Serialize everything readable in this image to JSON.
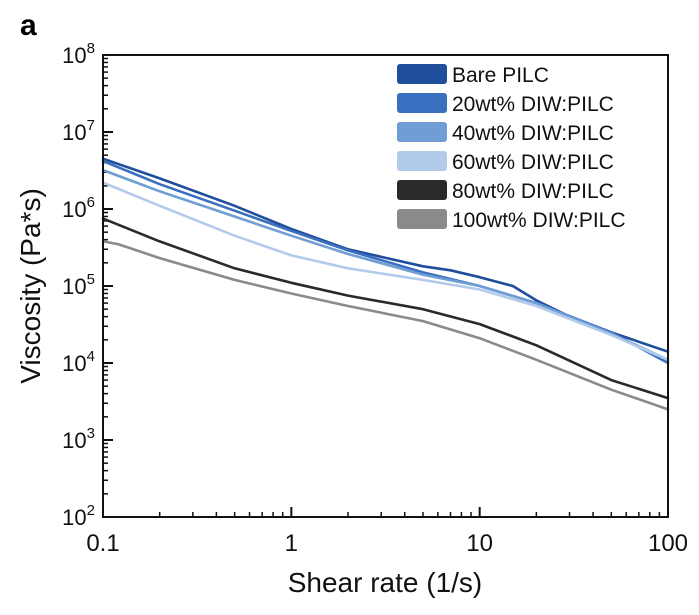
{
  "chart_data": {
    "type": "line",
    "panel_label": "a",
    "title": "",
    "xlabel": "Shear rate (1/s)",
    "ylabel": "Viscosity (Pa*s)",
    "x_scale": "log",
    "y_scale": "log",
    "xlim": [
      0.1,
      100
    ],
    "ylim": [
      100,
      100000000
    ],
    "x_ticks": [
      {
        "value": 0.1,
        "label": "0.1"
      },
      {
        "value": 1,
        "label": "1"
      },
      {
        "value": 10,
        "label": "10"
      },
      {
        "value": 100,
        "label": "100"
      }
    ],
    "y_ticks": [
      {
        "value": 100,
        "base": "10",
        "exp": "2"
      },
      {
        "value": 1000,
        "base": "10",
        "exp": "3"
      },
      {
        "value": 10000,
        "base": "10",
        "exp": "4"
      },
      {
        "value": 100000,
        "base": "10",
        "exp": "5"
      },
      {
        "value": 1000000,
        "base": "10",
        "exp": "6"
      },
      {
        "value": 10000000,
        "base": "10",
        "exp": "7"
      },
      {
        "value": 100000000,
        "base": "10",
        "exp": "8"
      }
    ],
    "grid": false,
    "legend_position": "top-right",
    "series": [
      {
        "name": "Bare PILC",
        "color": "#1f4e9c",
        "x": [
          0.1,
          0.2,
          0.5,
          1,
          2,
          5,
          7,
          10,
          15,
          20,
          30,
          50,
          100
        ],
        "y": [
          4500000,
          2500000,
          1100000,
          550000,
          300000,
          180000,
          160000,
          130000,
          100000,
          65000,
          40000,
          25000,
          14000
        ]
      },
      {
        "name": "20wt% DIW:PILC",
        "color": "#3a6fc0",
        "x": [
          0.1,
          0.2,
          0.5,
          1,
          2,
          5,
          10,
          20,
          50,
          100
        ],
        "y": [
          4200000,
          2100000,
          950000,
          520000,
          290000,
          150000,
          100000,
          60000,
          25000,
          10000
        ]
      },
      {
        "name": "40wt% DIW:PILC",
        "color": "#6f9dd4",
        "x": [
          0.1,
          0.2,
          0.5,
          1,
          2,
          5,
          10,
          20,
          50,
          100
        ],
        "y": [
          3200000,
          1700000,
          800000,
          450000,
          260000,
          140000,
          100000,
          60000,
          24000,
          11000
        ]
      },
      {
        "name": "60wt% DIW:PILC",
        "color": "#b3cbea",
        "x": [
          0.1,
          0.2,
          0.5,
          1,
          2,
          5,
          10,
          20,
          50,
          100
        ],
        "y": [
          2200000,
          1100000,
          450000,
          250000,
          170000,
          120000,
          90000,
          55000,
          23000,
          11000
        ]
      },
      {
        "name": "80wt% DIW:PILC",
        "color": "#2a2a2a",
        "x": [
          0.1,
          0.2,
          0.5,
          1,
          2,
          5,
          10,
          20,
          50,
          100
        ],
        "y": [
          750000,
          380000,
          170000,
          110000,
          75000,
          50000,
          32000,
          17000,
          6000,
          3500
        ]
      },
      {
        "name": "100wt% DIW:PILC",
        "color": "#8a8a8a",
        "x": [
          0.1,
          0.12,
          0.2,
          0.5,
          1,
          2,
          5,
          10,
          20,
          50,
          100
        ],
        "y": [
          380000,
          350000,
          230000,
          120000,
          80000,
          55000,
          35000,
          21000,
          11000,
          4500,
          2500
        ]
      }
    ]
  }
}
